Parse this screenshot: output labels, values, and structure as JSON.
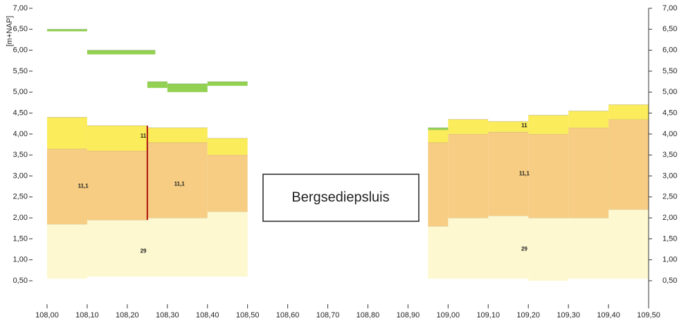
{
  "chart_data": {
    "type": "profile",
    "ylabel": "[m+NAP]",
    "box_label": "Bergsediepsluis",
    "xlim": [
      108.0,
      109.5
    ],
    "ylim": [
      0.5,
      7.0
    ],
    "xticks": [
      {
        "value": 108.0,
        "label": "108,00"
      },
      {
        "value": 108.1,
        "label": "108,10"
      },
      {
        "value": 108.2,
        "label": "108,20"
      },
      {
        "value": 108.3,
        "label": "108,30"
      },
      {
        "value": 108.4,
        "label": "108,40"
      },
      {
        "value": 108.5,
        "label": "108,50"
      },
      {
        "value": 108.6,
        "label": "108,60"
      },
      {
        "value": 108.7,
        "label": "108,70"
      },
      {
        "value": 108.8,
        "label": "108,80"
      },
      {
        "value": 108.9,
        "label": "108,90"
      },
      {
        "value": 109.0,
        "label": "109,00"
      },
      {
        "value": 109.1,
        "label": "109,10"
      },
      {
        "value": 109.2,
        "label": "109,20"
      },
      {
        "value": 109.3,
        "label": "109,30"
      },
      {
        "value": 109.4,
        "label": "109,40"
      },
      {
        "value": 109.5,
        "label": "109,50"
      }
    ],
    "yticks": [
      {
        "value": 0.5,
        "label": "0,50"
      },
      {
        "value": 1.0,
        "label": "1,00"
      },
      {
        "value": 1.5,
        "label": "1,50"
      },
      {
        "value": 2.0,
        "label": "2,00"
      },
      {
        "value": 2.5,
        "label": "2,50"
      },
      {
        "value": 3.0,
        "label": "3,00"
      },
      {
        "value": 3.5,
        "label": "3,50"
      },
      {
        "value": 4.0,
        "label": "4,00"
      },
      {
        "value": 4.5,
        "label": "4,50"
      },
      {
        "value": 5.0,
        "label": "5,00"
      },
      {
        "value": 5.5,
        "label": "5,50"
      },
      {
        "value": 6.0,
        "label": "6,00"
      },
      {
        "value": 6.5,
        "label": "6,50"
      },
      {
        "value": 7.0,
        "label": "7,00"
      }
    ],
    "layers": [
      {
        "color": "#fdf8cf",
        "segments": [
          {
            "x": [
              108.0,
              108.1
            ],
            "y": [
              0.55,
              1.85
            ]
          },
          {
            "x": [
              108.1,
              108.25
            ],
            "y": [
              0.6,
              1.95
            ]
          },
          {
            "x": [
              108.25,
              108.4
            ],
            "y": [
              0.6,
              2.0
            ]
          },
          {
            "x": [
              108.4,
              108.5
            ],
            "y": [
              0.6,
              2.15
            ]
          },
          {
            "x": [
              108.95,
              109.0
            ],
            "y": [
              0.55,
              1.8
            ]
          },
          {
            "x": [
              109.0,
              109.1
            ],
            "y": [
              0.55,
              2.0
            ]
          },
          {
            "x": [
              109.1,
              109.2
            ],
            "y": [
              0.55,
              2.05
            ]
          },
          {
            "x": [
              109.2,
              109.3
            ],
            "y": [
              0.5,
              2.0
            ]
          },
          {
            "x": [
              109.3,
              109.4
            ],
            "y": [
              0.55,
              2.0
            ]
          },
          {
            "x": [
              109.4,
              109.5
            ],
            "y": [
              0.55,
              2.2
            ]
          }
        ]
      },
      {
        "color": "#f6cd82",
        "segments": [
          {
            "x": [
              108.0,
              108.1
            ],
            "y": [
              1.85,
              3.65
            ]
          },
          {
            "x": [
              108.1,
              108.25
            ],
            "y": [
              1.95,
              3.6
            ]
          },
          {
            "x": [
              108.25,
              108.4
            ],
            "y": [
              2.0,
              3.8
            ]
          },
          {
            "x": [
              108.4,
              108.5
            ],
            "y": [
              2.15,
              3.5
            ]
          },
          {
            "x": [
              108.95,
              109.0
            ],
            "y": [
              1.8,
              3.8
            ]
          },
          {
            "x": [
              109.0,
              109.1
            ],
            "y": [
              2.0,
              4.0
            ]
          },
          {
            "x": [
              109.1,
              109.2
            ],
            "y": [
              2.05,
              4.05
            ]
          },
          {
            "x": [
              109.2,
              109.3
            ],
            "y": [
              2.0,
              4.0
            ]
          },
          {
            "x": [
              109.3,
              109.4
            ],
            "y": [
              2.0,
              4.15
            ]
          },
          {
            "x": [
              109.4,
              109.5
            ],
            "y": [
              2.2,
              4.35
            ]
          }
        ]
      },
      {
        "color": "#fbec5c",
        "segments": [
          {
            "x": [
              108.0,
              108.1
            ],
            "y": [
              3.65,
              4.4
            ]
          },
          {
            "x": [
              108.1,
              108.25
            ],
            "y": [
              3.6,
              4.2
            ]
          },
          {
            "x": [
              108.25,
              108.4
            ],
            "y": [
              3.8,
              4.15
            ]
          },
          {
            "x": [
              108.4,
              108.5
            ],
            "y": [
              3.5,
              3.9
            ]
          },
          {
            "x": [
              108.95,
              109.0
            ],
            "y": [
              3.8,
              4.1
            ]
          },
          {
            "x": [
              109.0,
              109.1
            ],
            "y": [
              4.0,
              4.35
            ]
          },
          {
            "x": [
              109.1,
              109.2
            ],
            "y": [
              4.05,
              4.3
            ]
          },
          {
            "x": [
              109.2,
              109.3
            ],
            "y": [
              4.0,
              4.45
            ]
          },
          {
            "x": [
              109.3,
              109.4
            ],
            "y": [
              4.15,
              4.55
            ]
          },
          {
            "x": [
              109.4,
              109.5
            ],
            "y": [
              4.35,
              4.7
            ]
          }
        ]
      },
      {
        "color": "#93d152",
        "segments": [
          {
            "x": [
              108.0,
              108.1
            ],
            "y": [
              6.45,
              6.5
            ]
          },
          {
            "x": [
              108.1,
              108.27
            ],
            "y": [
              5.9,
              6.0
            ]
          },
          {
            "x": [
              108.25,
              108.3
            ],
            "y": [
              5.1,
              5.25
            ]
          },
          {
            "x": [
              108.3,
              108.4
            ],
            "y": [
              5.0,
              5.2
            ]
          },
          {
            "x": [
              108.4,
              108.5
            ],
            "y": [
              5.15,
              5.25
            ]
          },
          {
            "x": [
              108.95,
              109.0
            ],
            "y": [
              4.1,
              4.15
            ]
          }
        ]
      }
    ],
    "boundaries": [
      {
        "x": 108.25,
        "y": [
          1.95,
          4.2
        ],
        "color": "#b01010"
      }
    ],
    "annotations": [
      {
        "text": "11,1",
        "x": 108.09,
        "y": 2.75,
        "color": "#b01010"
      },
      {
        "text": "11,1",
        "x": 108.33,
        "y": 2.8,
        "color": "#b01010"
      },
      {
        "text": "11",
        "x": 108.24,
        "y": 3.95,
        "color": "#444"
      },
      {
        "text": "29",
        "x": 108.24,
        "y": 1.2,
        "color": "#444"
      },
      {
        "text": "11,1",
        "x": 109.19,
        "y": 3.05,
        "color": "#b01010"
      },
      {
        "text": "11",
        "x": 109.19,
        "y": 4.2,
        "color": "#444"
      },
      {
        "text": "29",
        "x": 109.19,
        "y": 1.25,
        "color": "#444"
      }
    ]
  }
}
